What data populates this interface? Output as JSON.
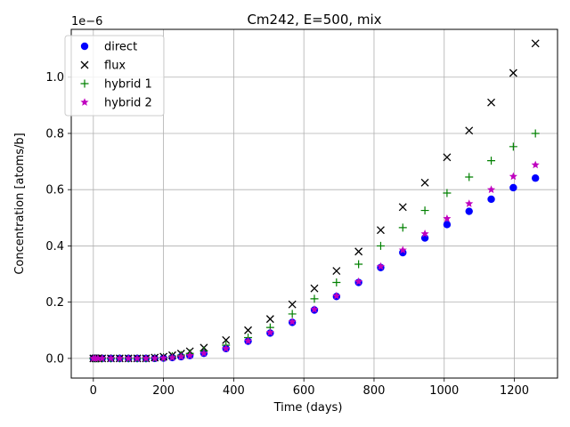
{
  "chart_data": {
    "type": "scatter",
    "title": "Cm242, E=500, mix",
    "xlabel": "Time (days)",
    "ylabel": "Concentration [atoms/b]",
    "y_offset_label": "1e−6",
    "xlim": [
      -63,
      1323
    ],
    "ylim": [
      -7e-08,
      1.17e-06
    ],
    "x_ticks": [
      0,
      200,
      400,
      600,
      800,
      1000,
      1200
    ],
    "x_tick_labels": [
      "0",
      "200",
      "400",
      "600",
      "800",
      "1000",
      "1200"
    ],
    "y_ticks": [
      0.0,
      2e-07,
      4e-07,
      6e-07,
      8e-07,
      1e-06
    ],
    "y_tick_labels": [
      "0.0",
      "0.2",
      "0.4",
      "0.6",
      "0.8",
      "1.0"
    ],
    "grid": true,
    "legend_position": "top-left",
    "x": [
      0,
      6,
      13,
      25,
      50,
      75,
      100,
      125,
      150,
      175,
      200,
      225,
      250,
      275,
      315,
      378,
      441,
      504,
      567,
      630,
      693,
      756,
      819,
      882,
      945,
      1008,
      1071,
      1134,
      1197,
      1260
    ],
    "series": [
      {
        "name": "direct",
        "marker": "circle",
        "color": "#0000ff",
        "values": [
          0,
          0,
          0,
          0,
          0,
          0,
          0,
          0,
          0,
          0,
          1e-09,
          3e-09,
          6e-09,
          1e-08,
          1.8e-08,
          3.5e-08,
          6.1e-08,
          9e-08,
          1.28e-07,
          1.72e-07,
          2.2e-07,
          2.7e-07,
          3.23e-07,
          3.76e-07,
          4.28e-07,
          4.76e-07,
          5.23e-07,
          5.66e-07,
          6.07e-07,
          6.41e-07
        ]
      },
      {
        "name": "flux",
        "marker": "x",
        "color": "#000000",
        "values": [
          0,
          0,
          0,
          0,
          0,
          0,
          0,
          0,
          0,
          3e-09,
          6e-09,
          1.1e-08,
          1.7e-08,
          2.5e-08,
          3.8e-08,
          6.5e-08,
          1e-07,
          1.4e-07,
          1.92e-07,
          2.49e-07,
          3.11e-07,
          3.8e-07,
          4.56e-07,
          5.38e-07,
          6.25e-07,
          7.15e-07,
          8.1e-07,
          9.1e-07,
          1.015e-06,
          1.12e-06
        ]
      },
      {
        "name": "hybrid 1",
        "marker": "plus",
        "color": "#008000",
        "values": [
          0,
          0,
          0,
          0,
          0,
          0,
          0,
          0,
          0,
          2e-09,
          4e-09,
          8e-09,
          1.2e-08,
          1.8e-08,
          2.7e-08,
          4.7e-08,
          7.4e-08,
          1.1e-07,
          1.58e-07,
          2.12e-07,
          2.7e-07,
          3.35e-07,
          4e-07,
          4.65e-07,
          5.26e-07,
          5.88e-07,
          6.45e-07,
          7.03e-07,
          7.53e-07,
          8e-07
        ]
      },
      {
        "name": "hybrid 2",
        "marker": "star",
        "color": "#bf00bf",
        "values": [
          0,
          0,
          0,
          0,
          0,
          0,
          0,
          0,
          0,
          0,
          1e-09,
          3e-09,
          6e-09,
          1e-08,
          1.8e-08,
          3.5e-08,
          6.2e-08,
          9.2e-08,
          1.3e-07,
          1.74e-07,
          2.22e-07,
          2.73e-07,
          3.27e-07,
          3.85e-07,
          4.43e-07,
          4.97e-07,
          5.5e-07,
          6e-07,
          6.47e-07,
          6.88e-07
        ]
      }
    ]
  }
}
